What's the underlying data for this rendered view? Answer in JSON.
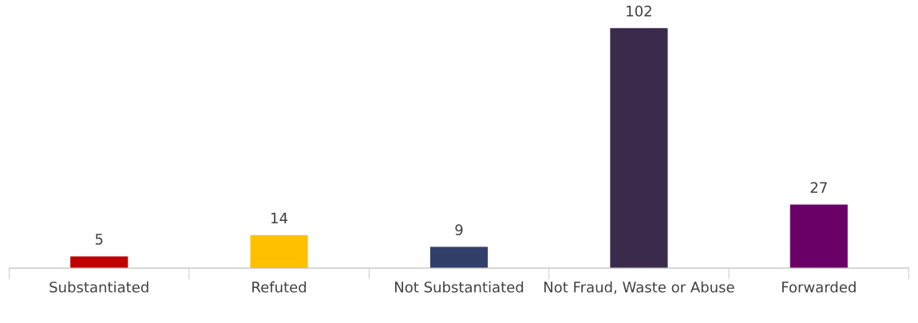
{
  "chart_data": {
    "type": "bar",
    "categories": [
      "Substantiated",
      "Refuted",
      "Not Substantiated",
      "Not Fraud, Waste or Abuse",
      "Forwarded"
    ],
    "values": [
      5,
      14,
      9,
      102,
      27
    ],
    "colors": [
      "#c00000",
      "#ffc000",
      "#333f6b",
      "#3a2a4b",
      "#6a0067"
    ],
    "data_labels": true,
    "grid": false,
    "legend": false,
    "tick_labels": "x"
  }
}
